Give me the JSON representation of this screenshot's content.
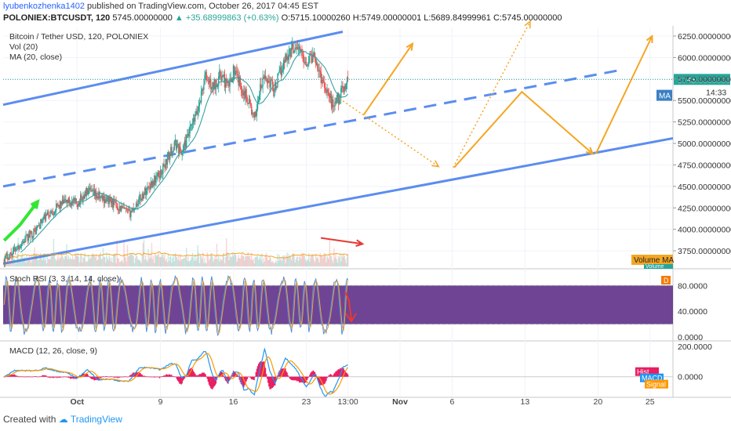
{
  "header": {
    "user": "lyubenkozhenka1402",
    "published": "published on TradingView.com, October 26, 2017 04:45 EST",
    "symbol": "POLONIEX:BTCUSDT, 120",
    "last": "5745.00000000",
    "change": "▲ +35.68999863 (+0.63%)",
    "open": "O:5715.10000260",
    "high": "H:5749.00000001",
    "low": "L:5689.84999961",
    "close": "C:5745.00000000"
  },
  "footer": {
    "created": "Created with",
    "brand": "TradingView"
  },
  "colors": {
    "up": "#26a69a",
    "down": "#ef5350",
    "channel": "#5b8def",
    "projection": "#f5a623",
    "rsi_band": "#5b2a86",
    "ma": "#3aa0a0",
    "arrow_red": "#e53935",
    "arrow_green": "#33e633"
  },
  "chart_data": [
    {
      "type": "candlestick",
      "legend": [
        "Bitcoin / Tether USD, 120, POLONIEX",
        "Vol (20)",
        "MA (20, close)"
      ],
      "ylim": [
        3550,
        6350
      ],
      "y_ticks": [
        "6250.00000000",
        "6000.00000000",
        "5750.00000000",
        "5500.00000000",
        "5250.00000000",
        "5000.00000000",
        "4750.00000000",
        "4500.00000000",
        "4250.00000000",
        "4000.00000000",
        "3750.00000000"
      ],
      "y_tick_values": [
        6250,
        6000,
        5750,
        5500,
        5250,
        5000,
        4750,
        4500,
        4250,
        4000,
        3750
      ],
      "x_ticks": [
        "Oct",
        "9",
        "16",
        "23",
        "13:00",
        "Nov",
        "6",
        "13",
        "20",
        "25"
      ],
      "x_tick_days": [
        1,
        9,
        16,
        23,
        27,
        32,
        37,
        44,
        51,
        56
      ],
      "xlim_days": [
        -6.1,
        58.2
      ],
      "price_key": [
        [
          -6.0,
          3650
        ],
        [
          -4.5,
          3820
        ],
        [
          -3,
          3990
        ],
        [
          -2,
          4150
        ],
        [
          -1.0,
          4250
        ],
        [
          0,
          4330
        ],
        [
          1,
          4300
        ],
        [
          2,
          4440
        ],
        [
          3,
          4380
        ],
        [
          4,
          4340
        ],
        [
          5,
          4260
        ],
        [
          6,
          4180
        ],
        [
          7,
          4350
        ],
        [
          8,
          4520
        ],
        [
          9,
          4650
        ],
        [
          10,
          4900
        ],
        [
          10.5,
          5000
        ],
        [
          11,
          4880
        ],
        [
          12.5,
          5350
        ],
        [
          13.3,
          5780
        ],
        [
          14,
          5650
        ],
        [
          14.8,
          5800
        ],
        [
          15.5,
          5650
        ],
        [
          16,
          5850
        ],
        [
          17,
          5600
        ],
        [
          17.5,
          5500
        ],
        [
          18,
          5250
        ],
        [
          18.5,
          5600
        ],
        [
          19,
          5770
        ],
        [
          20,
          5650
        ],
        [
          21,
          6000
        ],
        [
          22,
          6150
        ],
        [
          23,
          5950
        ],
        [
          23.8,
          6050
        ],
        [
          24.3,
          5800
        ],
        [
          25,
          5620
        ],
        [
          25.5,
          5450
        ],
        [
          26.2,
          5550
        ],
        [
          27,
          5745
        ]
      ],
      "last_price": 5745,
      "last_price_label": "5745.00000000",
      "countdown": "14:33",
      "ma_tag": "MA",
      "volume_ma_tag": "Volume MA",
      "volume_tag": "Volume"
    },
    {
      "type": "line",
      "legend": "Stoch RSI (3, 3, 14, 14, close)",
      "ylim": [
        0,
        100
      ],
      "bands": [
        20,
        80
      ],
      "y_ticks": [
        "80.0000",
        "40.0000",
        "0.0000"
      ],
      "y_tick_values": [
        80,
        40,
        0
      ],
      "tag": "D"
    },
    {
      "type": "line",
      "legend": "MACD (12, 26, close, 9)",
      "ylim": [
        -120,
        220
      ],
      "y_ticks": [
        "200.0000",
        "0.0000"
      ],
      "y_tick_values": [
        200,
        0
      ],
      "tags": [
        "Hist",
        "MACD",
        "Signal"
      ]
    }
  ]
}
